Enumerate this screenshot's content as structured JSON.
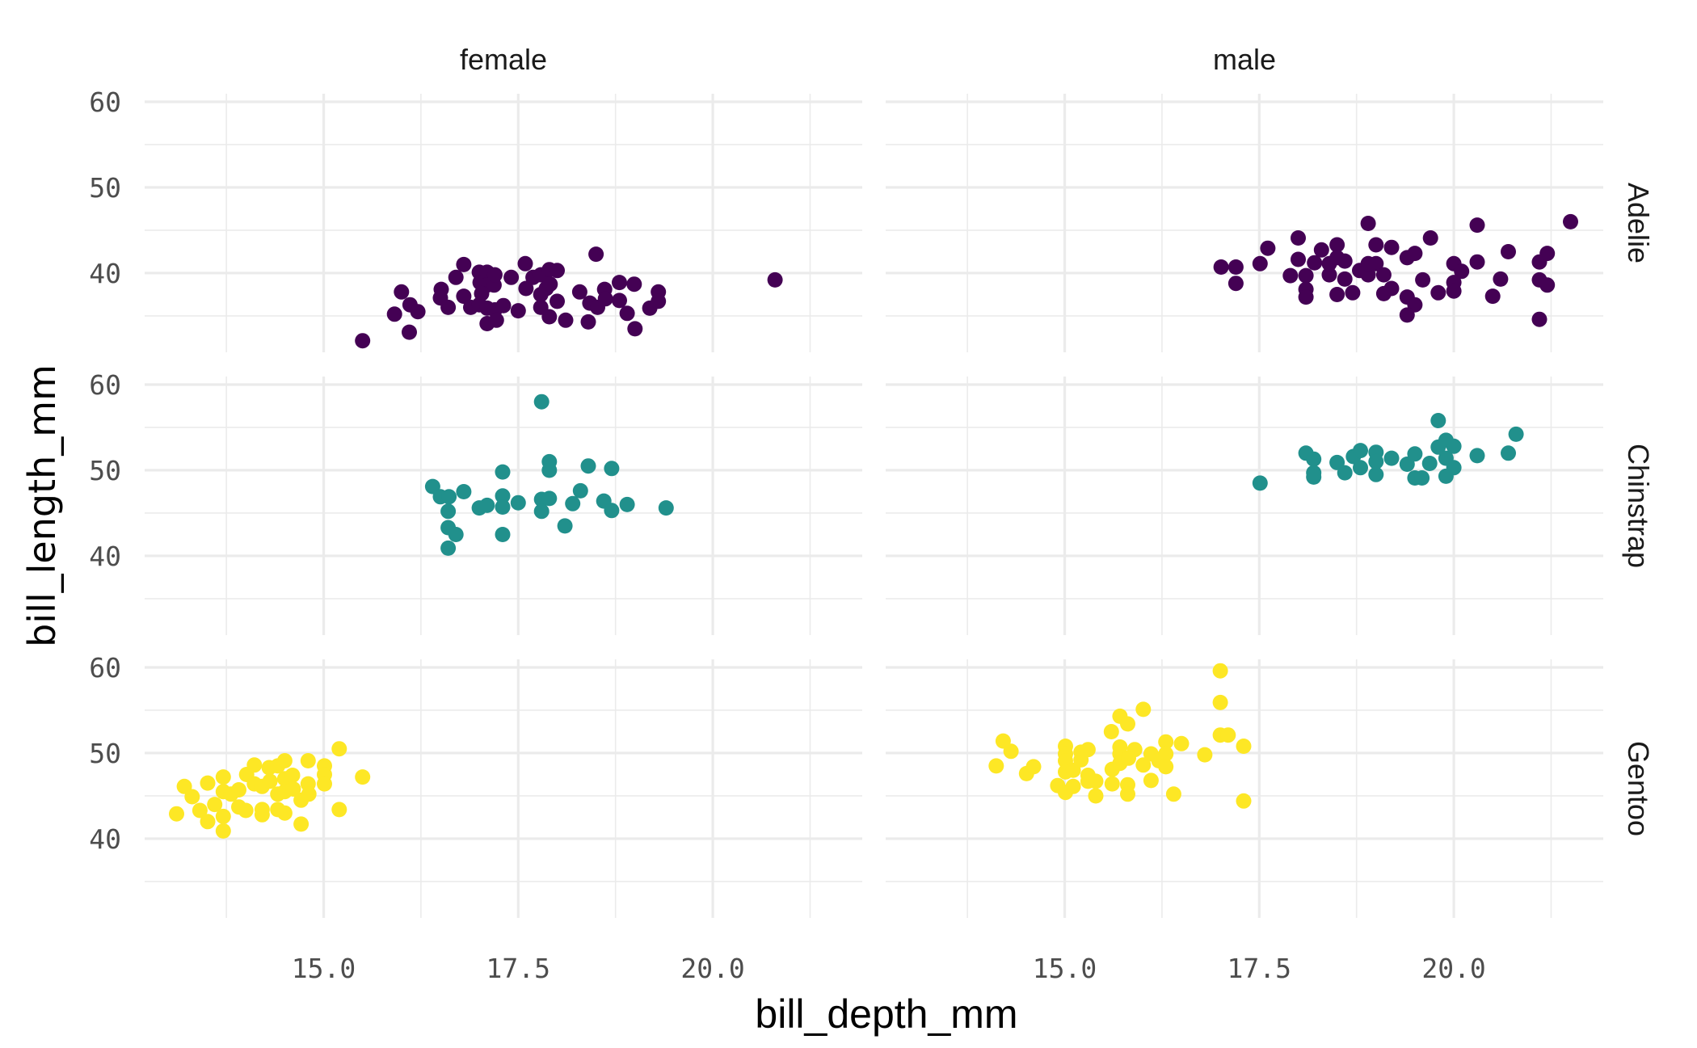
{
  "chart_data": {
    "type": "scatter",
    "title": "",
    "xlabel": "bill_depth_mm",
    "ylabel": "bill_length_mm",
    "facet_cols": [
      "female",
      "male"
    ],
    "facet_rows": [
      "Adelie",
      "Chinstrap",
      "Gentoo"
    ],
    "xlim": [
      12.7,
      21.92
    ],
    "ylim": [
      30.75,
      60.94
    ],
    "x_ticks": [
      15.0,
      17.5,
      20.0
    ],
    "x_tick_labels": [
      "15.0",
      "17.5",
      "20.0"
    ],
    "x_minor": [
      13.75,
      16.25,
      18.75,
      21.25
    ],
    "y_ticks": [
      40,
      50,
      60
    ],
    "y_tick_labels": [
      "40",
      "50",
      "60"
    ],
    "y_minor": [
      35,
      45,
      55
    ],
    "grid": true,
    "legend": "none",
    "colors": {
      "Adelie": "#440154",
      "Chinstrap": "#21908c",
      "Gentoo": "#fde725"
    },
    "panels": [
      {
        "row": "Adelie",
        "col": "female",
        "points": [
          [
            15.5,
            32.1
          ],
          [
            15.91,
            35.2
          ],
          [
            16.1,
            33.1
          ],
          [
            16.0,
            37.8
          ],
          [
            16.11,
            36.3
          ],
          [
            16.21,
            35.5
          ],
          [
            16.51,
            38.1
          ],
          [
            16.5,
            37.1
          ],
          [
            16.6,
            36.0
          ],
          [
            16.7,
            39.5
          ],
          [
            16.8,
            41.0
          ],
          [
            16.8,
            37.3
          ],
          [
            16.89,
            36.0
          ],
          [
            17.0,
            40.1
          ],
          [
            17.01,
            38.9
          ],
          [
            17.1,
            40.1
          ],
          [
            17.1,
            38.6
          ],
          [
            17.03,
            37.6
          ],
          [
            17.0,
            36.3
          ],
          [
            17.1,
            35.9
          ],
          [
            17.19,
            38.6
          ],
          [
            17.2,
            39.8
          ],
          [
            17.2,
            35.7
          ],
          [
            17.1,
            34.1
          ],
          [
            17.22,
            34.5
          ],
          [
            17.31,
            36.2
          ],
          [
            17.41,
            39.5
          ],
          [
            17.5,
            35.6
          ],
          [
            17.59,
            41.1
          ],
          [
            17.6,
            38.2
          ],
          [
            17.69,
            39.5
          ],
          [
            17.79,
            39.8
          ],
          [
            17.79,
            37.5
          ],
          [
            17.86,
            38.2
          ],
          [
            17.9,
            40.4
          ],
          [
            17.91,
            38.7
          ],
          [
            18.0,
            40.3
          ],
          [
            17.79,
            36.0
          ],
          [
            18.0,
            36.7
          ],
          [
            17.9,
            34.9
          ],
          [
            18.11,
            34.5
          ],
          [
            18.29,
            37.8
          ],
          [
            18.4,
            34.3
          ],
          [
            18.42,
            36.5
          ],
          [
            18.5,
            42.2
          ],
          [
            18.52,
            36.0
          ],
          [
            18.61,
            38.1
          ],
          [
            18.62,
            37.0
          ],
          [
            18.8,
            38.9
          ],
          [
            18.8,
            36.8
          ],
          [
            18.9,
            35.3
          ],
          [
            18.99,
            38.7
          ],
          [
            19.0,
            33.5
          ],
          [
            19.19,
            35.9
          ],
          [
            19.3,
            37.8
          ],
          [
            19.3,
            36.7
          ],
          [
            20.8,
            39.2
          ]
        ]
      },
      {
        "row": "Adelie",
        "col": "male",
        "points": [
          [
            17.01,
            40.7
          ],
          [
            17.2,
            40.7
          ],
          [
            17.2,
            38.8
          ],
          [
            17.51,
            41.1
          ],
          [
            17.61,
            42.9
          ],
          [
            17.9,
            39.7
          ],
          [
            18.0,
            44.1
          ],
          [
            18.0,
            41.6
          ],
          [
            18.1,
            39.7
          ],
          [
            18.1,
            38.1
          ],
          [
            18.1,
            37.2
          ],
          [
            18.21,
            41.2
          ],
          [
            18.3,
            42.7
          ],
          [
            18.4,
            39.8
          ],
          [
            18.4,
            41.1
          ],
          [
            18.5,
            43.3
          ],
          [
            18.5,
            41.8
          ],
          [
            18.5,
            37.5
          ],
          [
            18.6,
            41.4
          ],
          [
            18.6,
            39.3
          ],
          [
            18.7,
            37.7
          ],
          [
            18.79,
            40.3
          ],
          [
            18.9,
            39.8
          ],
          [
            18.9,
            45.8
          ],
          [
            18.9,
            41.1
          ],
          [
            19.0,
            43.3
          ],
          [
            19.0,
            41.1
          ],
          [
            19.1,
            39.8
          ],
          [
            19.1,
            37.6
          ],
          [
            19.2,
            38.2
          ],
          [
            19.2,
            43.0
          ],
          [
            19.4,
            41.8
          ],
          [
            19.5,
            42.3
          ],
          [
            19.4,
            37.2
          ],
          [
            19.5,
            36.3
          ],
          [
            19.4,
            35.1
          ],
          [
            19.6,
            39.2
          ],
          [
            19.7,
            44.1
          ],
          [
            19.8,
            37.7
          ],
          [
            20.0,
            41.1
          ],
          [
            20.1,
            40.2
          ],
          [
            20.0,
            38.9
          ],
          [
            20.0,
            37.9
          ],
          [
            20.3,
            45.6
          ],
          [
            20.3,
            41.3
          ],
          [
            20.5,
            37.3
          ],
          [
            20.6,
            39.3
          ],
          [
            20.7,
            42.5
          ],
          [
            21.1,
            41.3
          ],
          [
            21.2,
            42.3
          ],
          [
            21.1,
            39.2
          ],
          [
            21.2,
            38.6
          ],
          [
            21.1,
            34.6
          ],
          [
            21.5,
            46.0
          ]
        ]
      },
      {
        "row": "Chinstrap",
        "col": "female",
        "points": [
          [
            16.4,
            48.1
          ],
          [
            16.5,
            46.9
          ],
          [
            16.61,
            46.9
          ],
          [
            16.6,
            45.2
          ],
          [
            16.6,
            43.3
          ],
          [
            16.7,
            42.5
          ],
          [
            16.6,
            40.9
          ],
          [
            16.8,
            47.5
          ],
          [
            17.0,
            45.6
          ],
          [
            17.1,
            45.9
          ],
          [
            17.3,
            49.8
          ],
          [
            17.3,
            47.0
          ],
          [
            17.3,
            45.7
          ],
          [
            17.3,
            42.5
          ],
          [
            17.5,
            46.2
          ],
          [
            17.8,
            58.0
          ],
          [
            17.8,
            46.6
          ],
          [
            17.8,
            45.2
          ],
          [
            17.9,
            51.0
          ],
          [
            17.9,
            50.0
          ],
          [
            17.9,
            46.7
          ],
          [
            18.1,
            43.5
          ],
          [
            18.2,
            46.1
          ],
          [
            18.3,
            47.6
          ],
          [
            18.4,
            50.5
          ],
          [
            18.6,
            46.4
          ],
          [
            18.7,
            50.2
          ],
          [
            18.7,
            45.3
          ],
          [
            18.9,
            46.0
          ],
          [
            19.4,
            45.6
          ]
        ]
      },
      {
        "row": "Chinstrap",
        "col": "male",
        "points": [
          [
            17.51,
            48.5
          ],
          [
            18.1,
            52.0
          ],
          [
            18.2,
            51.3
          ],
          [
            18.2,
            49.7
          ],
          [
            18.2,
            49.2
          ],
          [
            18.5,
            50.9
          ],
          [
            18.6,
            49.7
          ],
          [
            18.71,
            51.6
          ],
          [
            18.8,
            52.3
          ],
          [
            18.8,
            50.3
          ],
          [
            19.0,
            52.1
          ],
          [
            19.0,
            49.5
          ],
          [
            19.0,
            51.0
          ],
          [
            19.2,
            51.4
          ],
          [
            19.4,
            50.7
          ],
          [
            19.5,
            51.9
          ],
          [
            19.5,
            49.1
          ],
          [
            19.59,
            49.1
          ],
          [
            19.69,
            50.8
          ],
          [
            19.8,
            55.8
          ],
          [
            19.8,
            52.7
          ],
          [
            19.9,
            53.5
          ],
          [
            20.0,
            52.8
          ],
          [
            19.9,
            51.4
          ],
          [
            20.0,
            50.3
          ],
          [
            19.9,
            49.3
          ],
          [
            20.3,
            51.7
          ],
          [
            20.7,
            52.0
          ],
          [
            20.8,
            54.2
          ]
        ]
      },
      {
        "row": "Gentoo",
        "col": "female",
        "points": [
          [
            13.11,
            42.9
          ],
          [
            13.21,
            46.1
          ],
          [
            13.31,
            44.9
          ],
          [
            13.41,
            43.3
          ],
          [
            13.51,
            42.0
          ],
          [
            13.51,
            46.5
          ],
          [
            13.6,
            44.0
          ],
          [
            13.71,
            47.2
          ],
          [
            13.71,
            45.5
          ],
          [
            13.71,
            42.6
          ],
          [
            13.71,
            40.9
          ],
          [
            13.81,
            45.2
          ],
          [
            13.91,
            45.7
          ],
          [
            13.91,
            43.7
          ],
          [
            14.0,
            43.3
          ],
          [
            14.01,
            47.5
          ],
          [
            14.11,
            48.6
          ],
          [
            14.11,
            46.4
          ],
          [
            14.21,
            46.1
          ],
          [
            14.21,
            43.4
          ],
          [
            14.21,
            42.8
          ],
          [
            14.3,
            48.3
          ],
          [
            14.31,
            46.7
          ],
          [
            14.41,
            48.5
          ],
          [
            14.41,
            45.2
          ],
          [
            14.41,
            43.4
          ],
          [
            14.5,
            49.1
          ],
          [
            14.5,
            47.0
          ],
          [
            14.5,
            45.5
          ],
          [
            14.5,
            43.0
          ],
          [
            14.6,
            47.4
          ],
          [
            14.61,
            45.8
          ],
          [
            14.71,
            44.5
          ],
          [
            14.71,
            41.7
          ],
          [
            14.8,
            49.1
          ],
          [
            14.8,
            46.4
          ],
          [
            14.81,
            45.2
          ],
          [
            15.01,
            48.5
          ],
          [
            15.01,
            47.5
          ],
          [
            15.01,
            46.4
          ],
          [
            15.2,
            50.5
          ],
          [
            15.2,
            43.4
          ],
          [
            15.5,
            47.2
          ]
        ]
      },
      {
        "row": "Gentoo",
        "col": "male",
        "points": [
          [
            14.12,
            48.5
          ],
          [
            14.21,
            51.4
          ],
          [
            14.31,
            50.2
          ],
          [
            14.51,
            47.6
          ],
          [
            14.6,
            48.4
          ],
          [
            14.91,
            46.2
          ],
          [
            15.01,
            50.8
          ],
          [
            15.01,
            49.9
          ],
          [
            15.01,
            49.1
          ],
          [
            15.01,
            47.8
          ],
          [
            15.01,
            45.4
          ],
          [
            15.11,
            48.0
          ],
          [
            15.11,
            46.1
          ],
          [
            15.21,
            50.1
          ],
          [
            15.21,
            49.2
          ],
          [
            15.3,
            50.4
          ],
          [
            15.3,
            47.4
          ],
          [
            15.3,
            46.7
          ],
          [
            15.4,
            46.7
          ],
          [
            15.4,
            45.0
          ],
          [
            15.6,
            52.5
          ],
          [
            15.61,
            48.1
          ],
          [
            15.61,
            46.4
          ],
          [
            15.71,
            54.3
          ],
          [
            15.71,
            50.7
          ],
          [
            15.71,
            49.9
          ],
          [
            15.71,
            48.8
          ],
          [
            15.81,
            53.4
          ],
          [
            15.81,
            46.3
          ],
          [
            15.81,
            45.2
          ],
          [
            15.9,
            50.4
          ],
          [
            15.82,
            49.4
          ],
          [
            16.01,
            55.1
          ],
          [
            16.01,
            48.6
          ],
          [
            16.11,
            49.9
          ],
          [
            16.11,
            46.8
          ],
          [
            16.21,
            49.1
          ],
          [
            16.3,
            51.3
          ],
          [
            16.3,
            49.9
          ],
          [
            16.3,
            48.4
          ],
          [
            16.4,
            45.2
          ],
          [
            16.5,
            51.1
          ],
          [
            16.8,
            49.8
          ],
          [
            17.0,
            59.6
          ],
          [
            17.0,
            55.9
          ],
          [
            17.0,
            52.1
          ],
          [
            17.1,
            52.1
          ],
          [
            17.3,
            50.8
          ],
          [
            17.3,
            44.4
          ]
        ]
      }
    ]
  }
}
